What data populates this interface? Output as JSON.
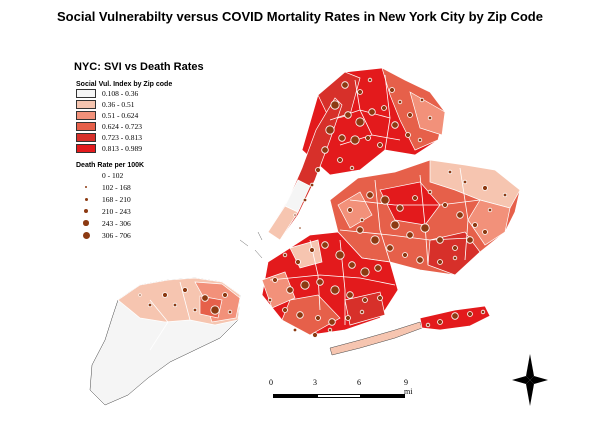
{
  "title": "Social Vulnerabilty versus COVID Mortality Rates in New York City by Zip Code",
  "legend": {
    "title": "NYC: SVI vs Death Rates",
    "svi_title": "Social Vul. Index by Zip code",
    "svi_classes": [
      {
        "label": "0.108 - 0.36",
        "color": "#f5f5f5"
      },
      {
        "label": "0.36 - 0.51",
        "color": "#f6c5b0"
      },
      {
        "label": "0.51 - 0.624",
        "color": "#f2917a"
      },
      {
        "label": "0.624 - 0.723",
        "color": "#e6604a"
      },
      {
        "label": "0.723 - 0.813",
        "color": "#d7302a"
      },
      {
        "label": "0.813 - 0.989",
        "color": "#e31a1c"
      }
    ],
    "death_title": "Death Rate per 100K",
    "death_classes": [
      {
        "label": "0 - 102",
        "level": 0
      },
      {
        "label": "102 - 168",
        "level": 1
      },
      {
        "label": "168 - 210",
        "level": 2
      },
      {
        "label": "210 - 243",
        "level": 3
      },
      {
        "label": "243 - 306",
        "level": 4
      },
      {
        "label": "306 - 706",
        "level": 5
      }
    ]
  },
  "scale_bar": {
    "ticks": [
      "0",
      "3",
      "6",
      "9 mi"
    ]
  },
  "colors": {
    "dot": "#8c3a12",
    "boundary": "#ffffff",
    "outline": "#444444"
  }
}
